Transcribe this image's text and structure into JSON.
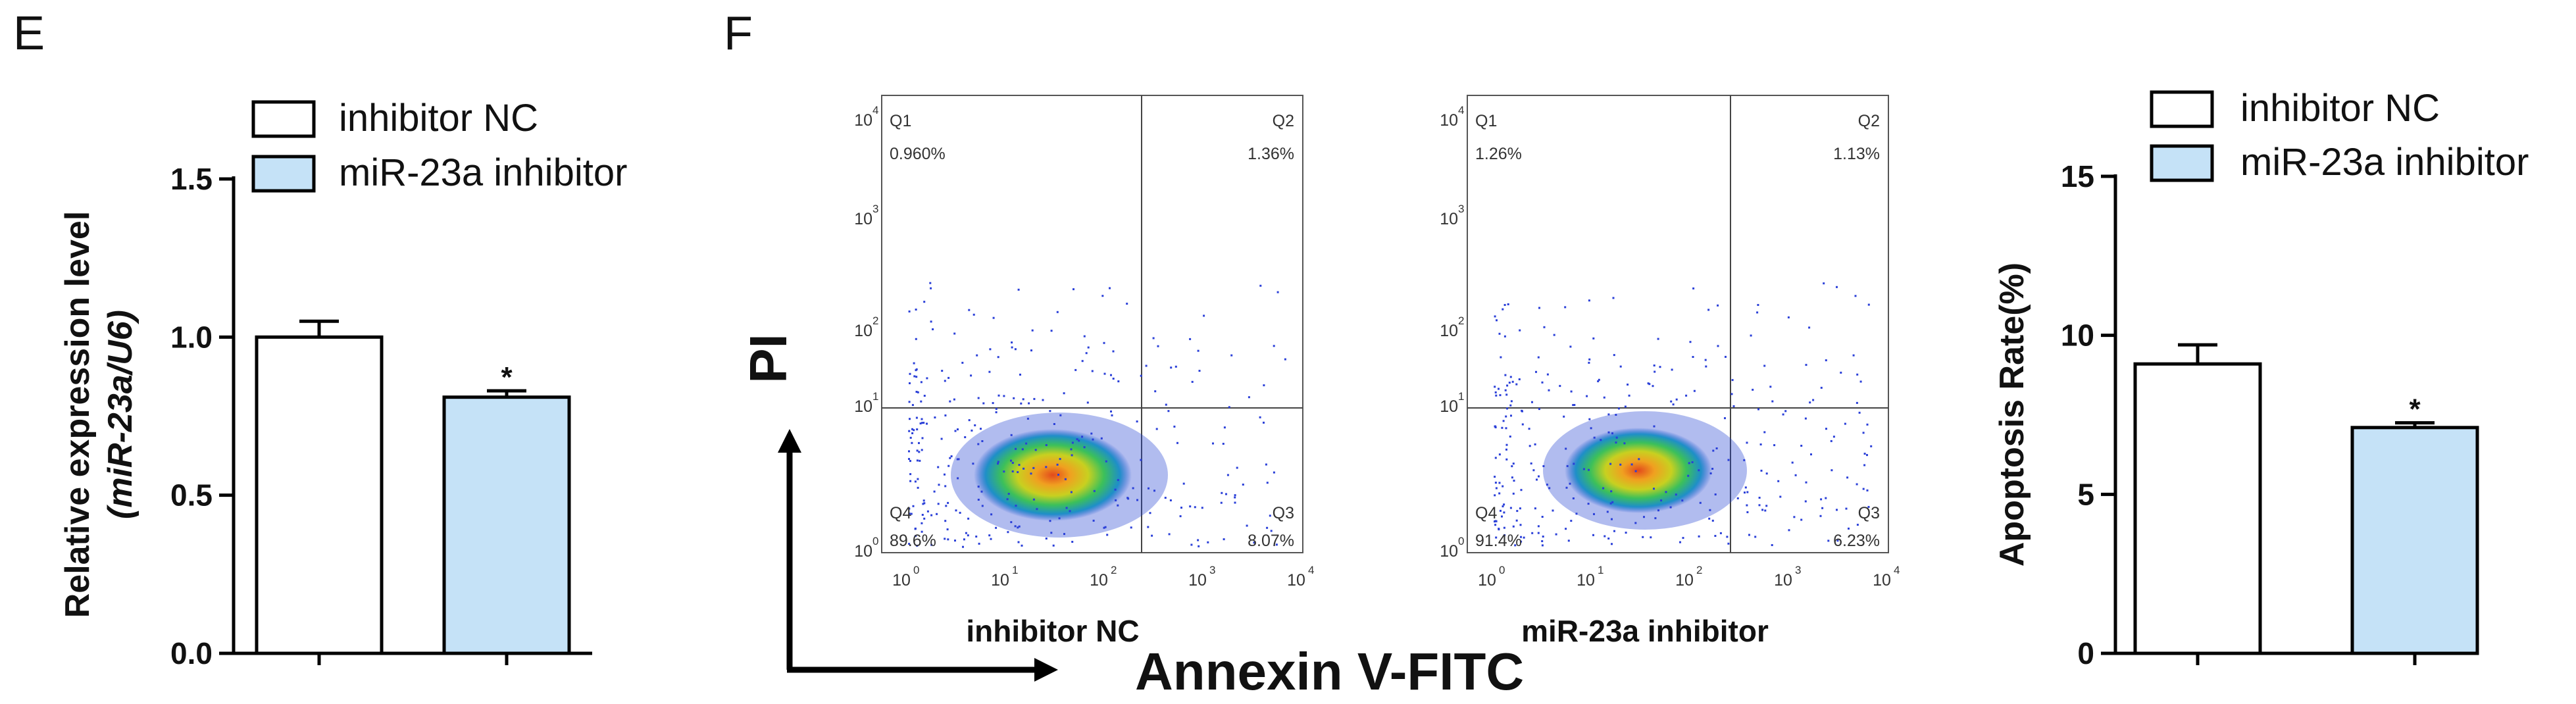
{
  "panels": {
    "e": {
      "label": "E"
    },
    "f": {
      "label": "F"
    }
  },
  "legend": {
    "control": "inhibitor NC",
    "treatment": "miR-23a inhibitor"
  },
  "colors": {
    "control_fill": "#ffffff",
    "treatment_fill": "#c5e2f7",
    "line": "#000000"
  },
  "significance_marker": "*",
  "flow": {
    "y_axis_label": "PI",
    "x_axis_label": "Annexin V-FITC",
    "tick_base": "10",
    "tick_exponents": [
      "0",
      "1",
      "2",
      "3",
      "4"
    ],
    "plots": [
      {
        "caption": "inhibitor NC",
        "quadrants": {
          "q1": {
            "name": "Q1",
            "value": "0.960%"
          },
          "q2": {
            "name": "Q2",
            "value": "1.36%"
          },
          "q3": {
            "name": "Q3",
            "value": "8.07%"
          },
          "q4": {
            "name": "Q4",
            "value": "89.6%"
          }
        }
      },
      {
        "caption": "miR-23a inhibitor",
        "quadrants": {
          "q1": {
            "name": "Q1",
            "value": "1.26%"
          },
          "q2": {
            "name": "Q2",
            "value": "1.13%"
          },
          "q3": {
            "name": "Q3",
            "value": "6.23%"
          },
          "q4": {
            "name": "Q4",
            "value": "91.4%"
          }
        }
      }
    ]
  },
  "chart_data": [
    {
      "type": "bar",
      "panel": "E",
      "ylabel": "Relative expression level",
      "ylabel_sub": "(miR-23a/U6)",
      "categories": [
        "inhibitor NC",
        "miR-23a inhibitor"
      ],
      "values": [
        1.0,
        0.81
      ],
      "errors": [
        0.05,
        0.02
      ],
      "significant": [
        false,
        true
      ],
      "ylim": [
        0,
        1.5
      ],
      "yticks": [
        "0.0",
        "0.5",
        "1.0",
        "1.5"
      ]
    },
    {
      "type": "bar",
      "panel": "F",
      "ylabel": "Apoptosis Rate(%)",
      "categories": [
        "inhibitor NC",
        "miR-23a inhibitor"
      ],
      "values": [
        9.1,
        7.1
      ],
      "errors": [
        0.6,
        0.15
      ],
      "significant": [
        false,
        true
      ],
      "ylim": [
        0,
        15
      ],
      "yticks": [
        "0",
        "5",
        "10",
        "15"
      ]
    }
  ]
}
